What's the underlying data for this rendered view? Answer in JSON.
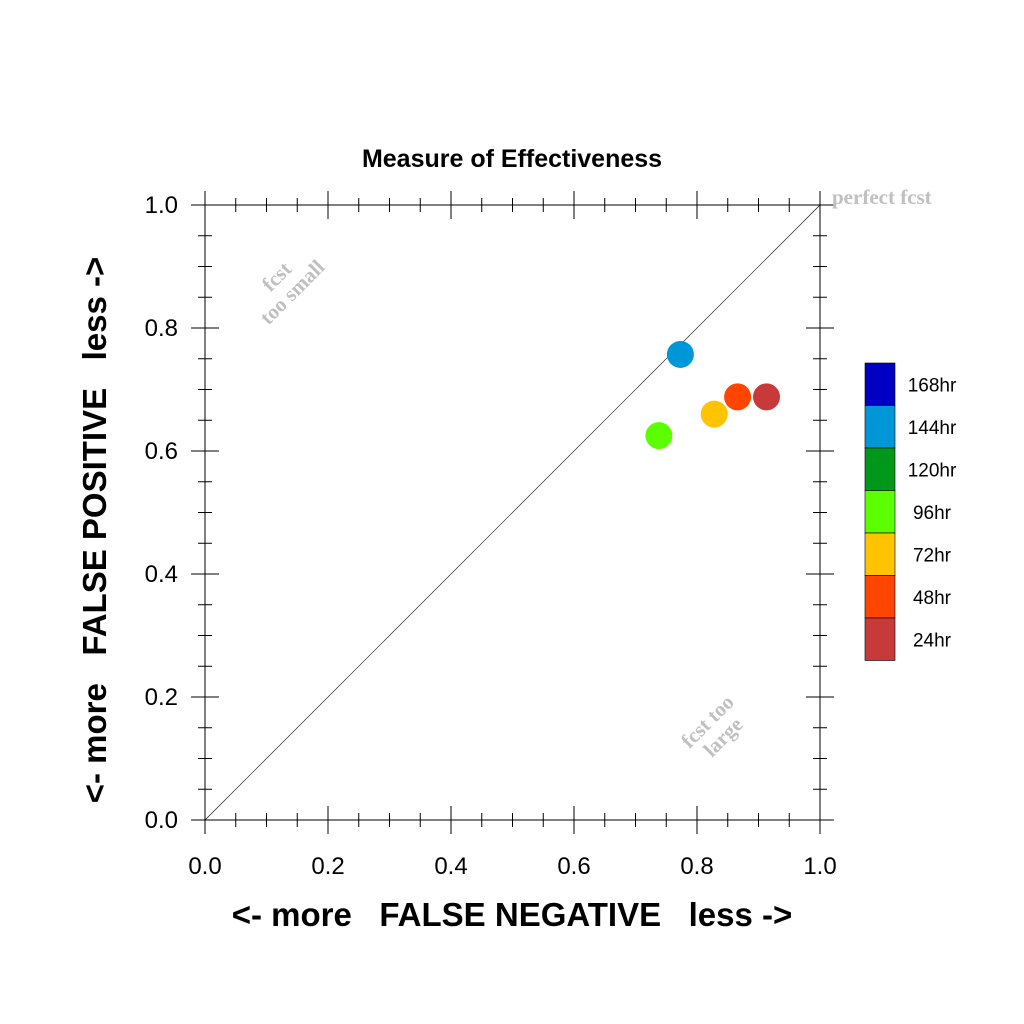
{
  "chart_data": {
    "type": "scatter",
    "title": "Measure of Effectiveness",
    "xlabel": "<- more   FALSE NEGATIVE   less ->",
    "ylabel": "<- more   FALSE POSITIVE   less ->",
    "xlim": [
      0.0,
      1.0
    ],
    "ylim": [
      0.0,
      1.0
    ],
    "xticks": [
      "0.0",
      "0.2",
      "0.4",
      "0.6",
      "0.8",
      "1.0"
    ],
    "yticks": [
      "0.0",
      "0.2",
      "0.4",
      "0.6",
      "0.8",
      "1.0"
    ],
    "grid": false,
    "diagonal_line": true,
    "annotations": [
      {
        "text": "perfect fcst"
      },
      {
        "text": "fcst"
      },
      {
        "text": "too small"
      },
      {
        "text": "fcst too"
      },
      {
        "text": "large"
      }
    ],
    "legend": {
      "placement": "right",
      "entries": [
        {
          "label": "168hr",
          "color": "#0000c4"
        },
        {
          "label": "144hr",
          "color": "#0097d9"
        },
        {
          "label": "120hr",
          "color": "#00981a"
        },
        {
          "label": "96hr",
          "color": "#5cff00"
        },
        {
          "label": "72hr",
          "color": "#ffc300"
        },
        {
          "label": "48hr",
          "color": "#ff4500"
        },
        {
          "label": "24hr",
          "color": "#c83a3a"
        }
      ]
    },
    "points": [
      {
        "name": "144hr",
        "x": 0.773,
        "y": 0.757,
        "color": "#0097d9"
      },
      {
        "name": "96hr",
        "x": 0.738,
        "y": 0.625,
        "color": "#5cff00"
      },
      {
        "name": "72hr",
        "x": 0.828,
        "y": 0.66,
        "color": "#ffc300"
      },
      {
        "name": "48hr",
        "x": 0.866,
        "y": 0.688,
        "color": "#ff4500"
      },
      {
        "name": "24hr",
        "x": 0.913,
        "y": 0.688,
        "color": "#c83a3a"
      }
    ]
  }
}
